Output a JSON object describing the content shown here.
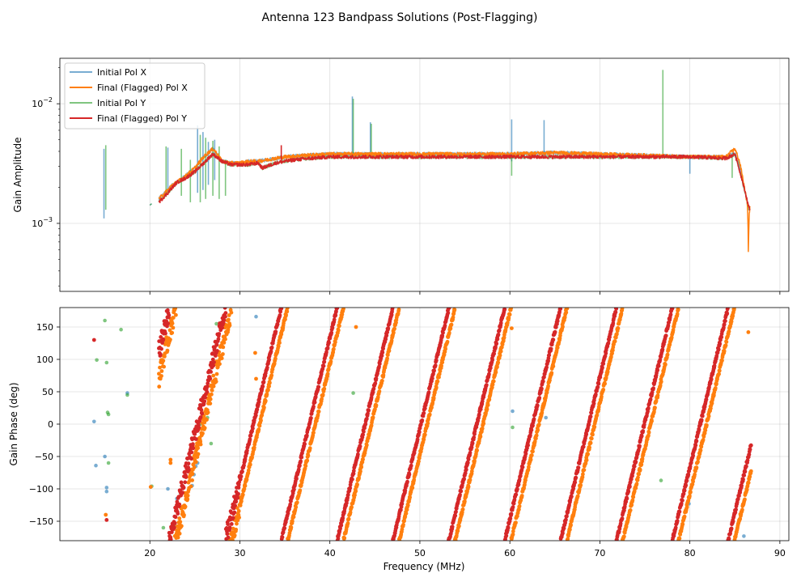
{
  "title": "Antenna 123 Bandpass Solutions (Post-Flagging)",
  "colors": {
    "initial_x": "#1f77b4",
    "final_x": "#ff7f0e",
    "initial_y": "#2ca02c",
    "final_y": "#d62728"
  },
  "chart_data": [
    {
      "type": "line",
      "panel": "amplitude",
      "ylabel": "Gain Amplitude",
      "xlabel": "",
      "yscale": "log",
      "xlim": [
        10,
        91
      ],
      "ylim": [
        0.00027,
        0.024
      ],
      "yticks": [
        {
          "value": 0.001,
          "base": "10",
          "exp": "−3"
        },
        {
          "value": 0.01,
          "base": "10",
          "exp": "−2"
        }
      ],
      "legend_position": "upper-left",
      "series": [
        {
          "name": "Initial Pol X",
          "color": "#1f77b4",
          "alpha": 0.55,
          "segments": [
            {
              "x": [
                20.0,
                20.2
              ],
              "y": [
                0.00142,
                0.00146
              ]
            },
            {
              "x": [
                21.0,
                22.0,
                22.5,
                23.0,
                24.0,
                25.0,
                26.0,
                27.0,
                27.5,
                28.0,
                29.0,
                30.0,
                31.0,
                32.0,
                33.0,
                35.0,
                37.0,
                40.0,
                45.0,
                50.0,
                55.0,
                60.0,
                65.0,
                70.0,
                75.0,
                80.0,
                84.0,
                85.0,
                85.5,
                86.0,
                86.5
              ],
              "y": [
                0.0016,
                0.0019,
                0.0021,
                0.0022,
                0.0025,
                0.0029,
                0.0036,
                0.0042,
                0.0038,
                0.0033,
                0.0032,
                0.0032,
                0.0033,
                0.0033,
                0.0034,
                0.0036,
                0.0037,
                0.0038,
                0.0038,
                0.0038,
                0.0038,
                0.0038,
                0.0039,
                0.0038,
                0.0037,
                0.0036,
                0.0036,
                0.0038,
                0.003,
                0.002,
                0.00135
              ]
            }
          ],
          "spikes": [
            {
              "x": 14.9,
              "lo": 0.0011,
              "hi": 0.0042
            },
            {
              "x": 22.0,
              "lo": 0.0018,
              "hi": 0.0043
            },
            {
              "x": 25.3,
              "lo": 0.0018,
              "hi": 0.0066
            },
            {
              "x": 25.9,
              "lo": 0.0019,
              "hi": 0.0058
            },
            {
              "x": 26.5,
              "lo": 0.0021,
              "hi": 0.0048
            },
            {
              "x": 27.2,
              "lo": 0.0023,
              "hi": 0.005
            },
            {
              "x": 42.5,
              "lo": 0.0035,
              "hi": 0.0115
            },
            {
              "x": 44.5,
              "lo": 0.0035,
              "hi": 0.007
            },
            {
              "x": 60.2,
              "lo": 0.0033,
              "hi": 0.0074
            },
            {
              "x": 63.8,
              "lo": 0.0037,
              "hi": 0.0073
            },
            {
              "x": 80.0,
              "lo": 0.0026,
              "hi": 0.0037
            }
          ]
        },
        {
          "name": "Final (Flagged) Pol X",
          "color": "#ff7f0e",
          "alpha": 1,
          "segments": [
            {
              "x": [
                21.0,
                22.0,
                22.5,
                23.0,
                24.0,
                25.0,
                26.0,
                27.0,
                27.5,
                28.0,
                29.0,
                30.0,
                31.0,
                32.0,
                33.0,
                35.0,
                37.0,
                40.0,
                45.0,
                50.0,
                55.0,
                60.0,
                65.0,
                70.0,
                75.0,
                80.0,
                84.0,
                85.0,
                85.5,
                86.0,
                86.4,
                86.5,
                86.6,
                86.7
              ],
              "y": [
                0.0016,
                0.0019,
                0.0021,
                0.0022,
                0.0025,
                0.0029,
                0.0036,
                0.0042,
                0.0038,
                0.0033,
                0.0032,
                0.0032,
                0.0033,
                0.0033,
                0.0034,
                0.0036,
                0.0037,
                0.0038,
                0.0038,
                0.0038,
                0.0038,
                0.0038,
                0.0039,
                0.0038,
                0.0037,
                0.0036,
                0.0036,
                0.0042,
                0.0033,
                0.0021,
                0.0014,
                0.0006,
                0.0012,
                0.0014
              ]
            }
          ],
          "spikes": []
        },
        {
          "name": "Initial Pol Y",
          "color": "#2ca02c",
          "alpha": 0.55,
          "segments": [
            {
              "x": [
                20.0,
                20.2
              ],
              "y": [
                0.00142,
                0.00146
              ]
            },
            {
              "x": [
                21.0,
                22.0,
                22.5,
                23.0,
                24.0,
                25.0,
                26.0,
                27.0,
                28.0,
                29.0,
                30.0,
                31.0,
                32.0,
                32.5,
                33.0,
                34.0,
                36.0,
                38.0,
                40.0,
                45.0,
                50.0,
                55.0,
                60.0,
                65.0,
                70.0,
                75.0,
                80.0,
                84.0,
                85.0,
                85.5,
                86.0,
                86.5
              ],
              "y": [
                0.0015,
                0.0018,
                0.002,
                0.0022,
                0.0024,
                0.0027,
                0.0032,
                0.0038,
                0.0033,
                0.0031,
                0.0031,
                0.0031,
                0.0032,
                0.0029,
                0.003,
                0.0032,
                0.0034,
                0.0035,
                0.0036,
                0.0036,
                0.0036,
                0.0036,
                0.0036,
                0.0036,
                0.0036,
                0.0036,
                0.0036,
                0.0035,
                0.0038,
                0.0028,
                0.002,
                0.0013
              ]
            }
          ],
          "spikes": [
            {
              "x": 15.1,
              "lo": 0.0013,
              "hi": 0.0045
            },
            {
              "x": 21.8,
              "lo": 0.0018,
              "hi": 0.0044
            },
            {
              "x": 23.5,
              "lo": 0.0017,
              "hi": 0.0042
            },
            {
              "x": 24.5,
              "lo": 0.0015,
              "hi": 0.0034
            },
            {
              "x": 25.6,
              "lo": 0.0015,
              "hi": 0.0055
            },
            {
              "x": 26.2,
              "lo": 0.0016,
              "hi": 0.0052
            },
            {
              "x": 27.0,
              "lo": 0.0017,
              "hi": 0.0049
            },
            {
              "x": 27.7,
              "lo": 0.0016,
              "hi": 0.0044
            },
            {
              "x": 28.4,
              "lo": 0.0017,
              "hi": 0.0034
            },
            {
              "x": 42.6,
              "lo": 0.0035,
              "hi": 0.011
            },
            {
              "x": 44.6,
              "lo": 0.0035,
              "hi": 0.0068
            },
            {
              "x": 60.2,
              "lo": 0.0025,
              "hi": 0.0037
            },
            {
              "x": 77.0,
              "lo": 0.0036,
              "hi": 0.0192
            },
            {
              "x": 84.7,
              "lo": 0.0024,
              "hi": 0.0037
            }
          ]
        },
        {
          "name": "Final (Flagged) Pol Y",
          "color": "#d62728",
          "alpha": 1,
          "segments": [
            {
              "x": [
                21.0,
                22.0,
                22.5,
                23.0,
                24.0,
                25.0,
                26.0,
                27.0,
                28.0,
                29.0,
                30.0,
                31.0,
                32.0,
                32.5,
                33.0,
                34.0,
                36.0,
                38.0,
                40.0,
                45.0,
                50.0,
                55.0,
                60.0,
                65.0,
                70.0,
                75.0,
                80.0,
                84.0,
                85.0,
                85.5,
                86.0,
                86.5,
                86.7
              ],
              "y": [
                0.0015,
                0.0018,
                0.002,
                0.0022,
                0.0024,
                0.0027,
                0.0032,
                0.0038,
                0.0033,
                0.0031,
                0.0031,
                0.0031,
                0.0032,
                0.0029,
                0.003,
                0.0032,
                0.0034,
                0.0035,
                0.0036,
                0.0036,
                0.0036,
                0.0036,
                0.0036,
                0.0036,
                0.0036,
                0.0036,
                0.0036,
                0.0035,
                0.0038,
                0.0028,
                0.002,
                0.0014,
                0.0013
              ]
            }
          ],
          "spikes": [
            {
              "x": 34.6,
              "lo": 0.0033,
              "hi": 0.0045
            }
          ]
        }
      ]
    },
    {
      "type": "scatter",
      "panel": "phase",
      "ylabel": "Gain Phase (deg)",
      "xlabel": "Frequency (MHz)",
      "xlim": [
        10,
        91
      ],
      "ylim": [
        -180,
        180
      ],
      "xticks": [
        20,
        30,
        40,
        50,
        60,
        70,
        80,
        90
      ],
      "yticks": [
        -150,
        -100,
        -50,
        0,
        50,
        100,
        150
      ],
      "phase_model": {
        "delay_deg_per_mhz": 58,
        "wrap": [
          -180,
          180
        ],
        "x_range": [
          21,
          86.8
        ]
      },
      "series": [
        {
          "name": "Initial Pol X",
          "color": "#1f77b4",
          "ref_freq_mhz": 35.3,
          "ref_phase_deg": -180,
          "points": [
            [
              13.8,
              4
            ],
            [
              14.0,
              -64
            ],
            [
              15.0,
              -50
            ],
            [
              15.2,
              -98
            ],
            [
              15.2,
              -104
            ],
            [
              17.5,
              48
            ],
            [
              22.0,
              -100
            ],
            [
              23.0,
              -115
            ],
            [
              24.7,
              -95
            ],
            [
              24.9,
              -78
            ],
            [
              25.1,
              -65
            ],
            [
              25.3,
              -60
            ],
            [
              26.6,
              45
            ],
            [
              31.8,
              166
            ],
            [
              43.5,
              -62
            ],
            [
              60.3,
              20
            ],
            [
              64.0,
              10
            ],
            [
              79.9,
              -123
            ],
            [
              86.0,
              -173
            ]
          ]
        },
        {
          "name": "Final (Flagged) Pol X",
          "color": "#ff7f0e",
          "ref_freq_mhz": 35.3,
          "ref_phase_deg": -180,
          "points": [
            [
              15.1,
              -140
            ],
            [
              20.1,
              -97
            ],
            [
              22.3,
              -55
            ],
            [
              22.3,
              -60
            ],
            [
              31.7,
              110
            ],
            [
              31.8,
              70
            ],
            [
              42.9,
              150
            ],
            [
              60.2,
              148
            ],
            [
              86.5,
              142
            ]
          ]
        },
        {
          "name": "Initial Pol Y",
          "color": "#2ca02c",
          "ref_freq_mhz": 34.6,
          "ref_phase_deg": -180,
          "points": [
            [
              14.1,
              99
            ],
            [
              15.0,
              160
            ],
            [
              15.2,
              95
            ],
            [
              15.3,
              18
            ],
            [
              15.4,
              15
            ],
            [
              15.4,
              -60
            ],
            [
              16.8,
              146
            ],
            [
              17.5,
              45
            ],
            [
              20.2,
              -96
            ],
            [
              21.5,
              -160
            ],
            [
              22.8,
              -158
            ],
            [
              25.6,
              0
            ],
            [
              26.4,
              10
            ],
            [
              26.8,
              -30
            ],
            [
              27.4,
              155
            ],
            [
              42.6,
              48
            ],
            [
              60.3,
              -5
            ],
            [
              76.8,
              -87
            ]
          ]
        },
        {
          "name": "Final (Flagged) Pol Y",
          "color": "#d62728",
          "ref_freq_mhz": 34.6,
          "ref_phase_deg": -180,
          "points": [
            [
              13.8,
              130
            ],
            [
              15.2,
              -148
            ]
          ]
        }
      ]
    }
  ]
}
